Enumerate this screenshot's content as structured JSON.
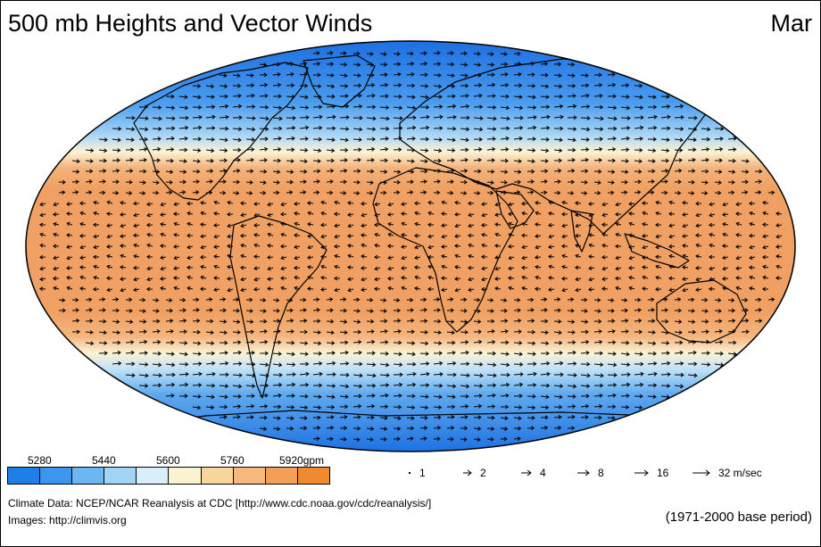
{
  "title": "500 mb Heights and Vector Winds",
  "month": "Mar",
  "colorbar": {
    "unit": "gpm",
    "labels": [
      "5280",
      "5440",
      "5600",
      "5760",
      "5920gpm"
    ],
    "colors": [
      "#1e7fe8",
      "#3c96ee",
      "#6cb7f2",
      "#a3d4f6",
      "#d8eefb",
      "#fbf3cf",
      "#f8d69e",
      "#f5b97b",
      "#f3a056",
      "#f08a2e"
    ]
  },
  "wind_reference": {
    "labels": [
      "1",
      "2",
      "4",
      "8",
      "16",
      "32 m/sec"
    ]
  },
  "credits": {
    "data": "Climate Data:  NCEP/NCAR Reanalysis at CDC [http://www.cdc.noaa.gov/cdc/reanalysis/]",
    "images": "Images:  http://climvis.org",
    "period": "(1971-2000 base period)"
  },
  "colors": {
    "low_height": "#2f86e6",
    "mid_height": "#ffffff",
    "high_height": "#f0a062",
    "coastline": "#000000"
  }
}
